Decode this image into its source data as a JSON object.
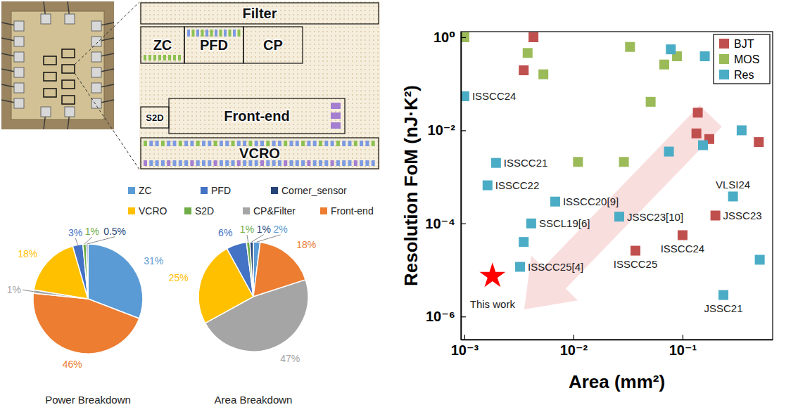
{
  "diagram": {
    "blocks": [
      "Filter",
      "ZC",
      "PFD",
      "CP",
      "S2D",
      "Front-end",
      "VCRO"
    ]
  },
  "chart_data": [
    {
      "type": "pie",
      "title": "Power Breakdown",
      "categories": [
        "ZC",
        "Front-end",
        "CP&Filter",
        "VCRO",
        "PFD",
        "S2D",
        "Corner_sensor"
      ],
      "values": [
        31,
        46,
        1,
        18,
        3,
        1,
        0.5
      ],
      "value_labels": [
        "31%",
        "46%",
        "1%",
        "18%",
        "3%",
        "1%",
        "0.5%"
      ],
      "colors": [
        "#5b9bd5",
        "#ed7d31",
        "#a5a5a5",
        "#ffc000",
        "#4472c4",
        "#70ad47",
        "#264478"
      ],
      "data_labels": true,
      "legend": "top"
    },
    {
      "type": "pie",
      "title": "Area Breakdown",
      "values": [
        2,
        18,
        47,
        25,
        6,
        1,
        1
      ],
      "value_labels": [
        "2%",
        "18%",
        "47%",
        "25%",
        "6%",
        "1%",
        "1%"
      ],
      "colors": [
        "#5b9bd5",
        "#ed7d31",
        "#a5a5a5",
        "#ffc000",
        "#4472c4",
        "#70ad47",
        "#264478"
      ],
      "data_labels": true
    },
    {
      "type": "scatter",
      "xlabel": "Area (mm²)",
      "ylabel": "Resolution FoM (nJ·K²)",
      "log": true,
      "xlim": [
        0.00093,
        0.67
      ],
      "ylim": [
        3.2e-07,
        1.32
      ],
      "xticks": [
        {
          "value": 0.001,
          "label": "10⁻³"
        },
        {
          "value": 0.01,
          "label": "10⁻²"
        },
        {
          "value": 0.1,
          "label": "10⁻¹"
        }
      ],
      "yticks": [
        {
          "value": 1e-06,
          "label": "10⁻⁶"
        },
        {
          "value": 0.0001,
          "label": "10⁻⁴"
        },
        {
          "value": 0.01,
          "label": "10⁻²"
        },
        {
          "value": 1,
          "label": "10⁰"
        }
      ],
      "legend": "top-right",
      "series": [
        {
          "name": "BJT",
          "color": "#c0504d",
          "marker": "square",
          "x": [
            0.0043,
            0.0035,
            0.138,
            0.134,
            0.176,
            0.5,
            0.2,
            0.1,
            0.037
          ],
          "values": [
            1.0,
            0.195,
            0.024,
            0.0086,
            0.0065,
            0.0056,
            0.000148,
            5.6e-05,
            2.6e-05
          ],
          "point_labels": [
            null,
            null,
            null,
            null,
            null,
            null,
            "JSSC23",
            "ISSCC24",
            "ISSCC25"
          ]
        },
        {
          "name": "MOS",
          "color": "#9bbb59",
          "marker": "square",
          "x": [
            0.001,
            0.0038,
            0.0053,
            0.033,
            0.068,
            0.089,
            0.051,
            0.011,
            0.029
          ],
          "values": [
            1.0,
            0.46,
            0.16,
            0.62,
            0.26,
            0.39,
            0.041,
            0.0021,
            0.0021
          ],
          "point_labels": [
            null,
            null,
            null,
            null,
            null,
            null,
            null,
            null,
            null
          ]
        },
        {
          "name": "Res",
          "color": "#4bacc6",
          "marker": "square",
          "x": [
            0.001,
            0.00195,
            0.00163,
            0.0068,
            0.0041,
            0.0263,
            0.0035,
            0.00324,
            0.078,
            0.16,
            0.075,
            0.154,
            0.348,
            0.29,
            0.51,
            0.237
          ],
          "values": [
            0.054,
            0.002,
            0.00066,
            0.000295,
            0.0001,
            0.00014,
            4e-05,
            1.17e-05,
            0.55,
            0.39,
            0.0035,
            0.0048,
            0.01,
            0.00038,
            1.66e-05,
            2.9e-06
          ],
          "point_labels": [
            "ISSCC24",
            "ISSCC21",
            "ISSCC22",
            "ISSCC20[9]",
            "SSCL19[6]",
            "JSSC23[10]",
            null,
            "ISSCC25[4]",
            null,
            null,
            null,
            null,
            null,
            "VLSI24",
            null,
            "JSSC21"
          ]
        }
      ],
      "highlight": {
        "label": "This work",
        "x": 0.00181,
        "y": 7.4e-06,
        "color": "#ff0000",
        "marker": "star"
      }
    }
  ]
}
